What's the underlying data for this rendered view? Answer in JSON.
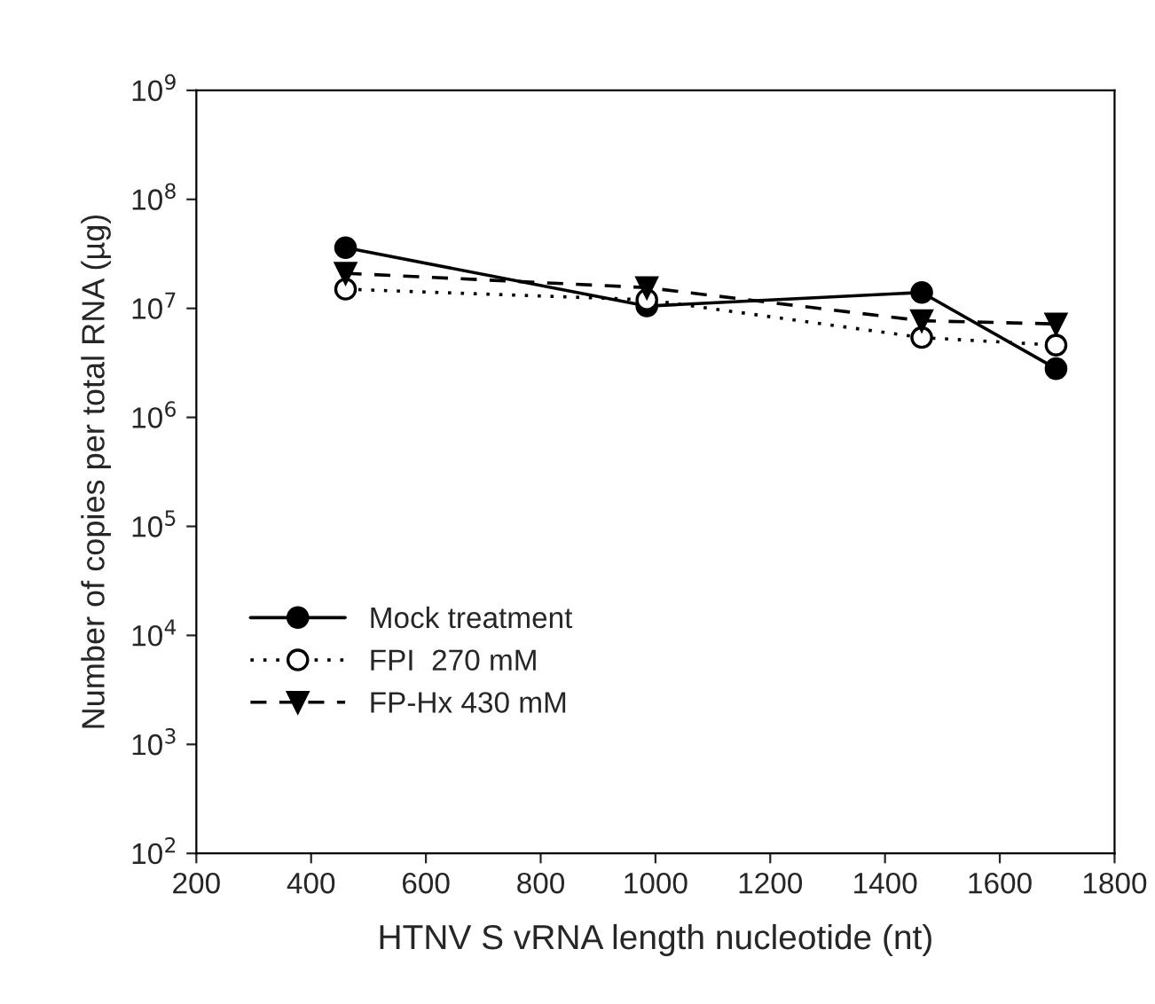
{
  "chart_data": {
    "type": "line",
    "xlabel": "HTNV S vRNA length nucleotide (nt)",
    "ylabel": "Number of copies per total RNA (µg)",
    "x": [
      460,
      985,
      1464,
      1698
    ],
    "log": "y",
    "xlim": [
      200,
      1800
    ],
    "xticks": [
      200,
      400,
      600,
      800,
      1000,
      1200,
      1400,
      1600,
      1800
    ],
    "ylim": [
      100,
      1000000000
    ],
    "yticks": [
      {
        "value": 100,
        "label": "10$^{2}$"
      },
      {
        "value": 1000,
        "label": "10$^{3}$"
      },
      {
        "value": 10000,
        "label": "10$^{4}$"
      },
      {
        "value": 100000,
        "label": "10$^{5}$"
      },
      {
        "value": 1000000,
        "label": "10$^{6}$"
      },
      {
        "value": 10000000,
        "label": "10$^{7}$"
      },
      {
        "value": 100000000,
        "label": "10$^{8}$"
      },
      {
        "value": 1000000000,
        "label": "10$^{9}$"
      }
    ],
    "grid": false,
    "legend": "left",
    "series": [
      {
        "name": "Mock treatment",
        "color": "#000000",
        "marker": "circle",
        "line_style": "solid",
        "values": [
          36000000,
          10500000,
          14000000,
          2800000
        ]
      },
      {
        "name": "FPI  270 mM",
        "color": "#000000",
        "marker": "circle",
        "line_style": "dotted",
        "values": [
          15000000,
          12000000,
          5400000,
          4600000
        ]
      },
      {
        "name": "FP-Hx 430 mM",
        "color": "#000000",
        "marker": "triangle",
        "line_style": "dashed",
        "values": [
          21000000,
          15500000,
          7700000,
          7200000
        ]
      }
    ]
  }
}
